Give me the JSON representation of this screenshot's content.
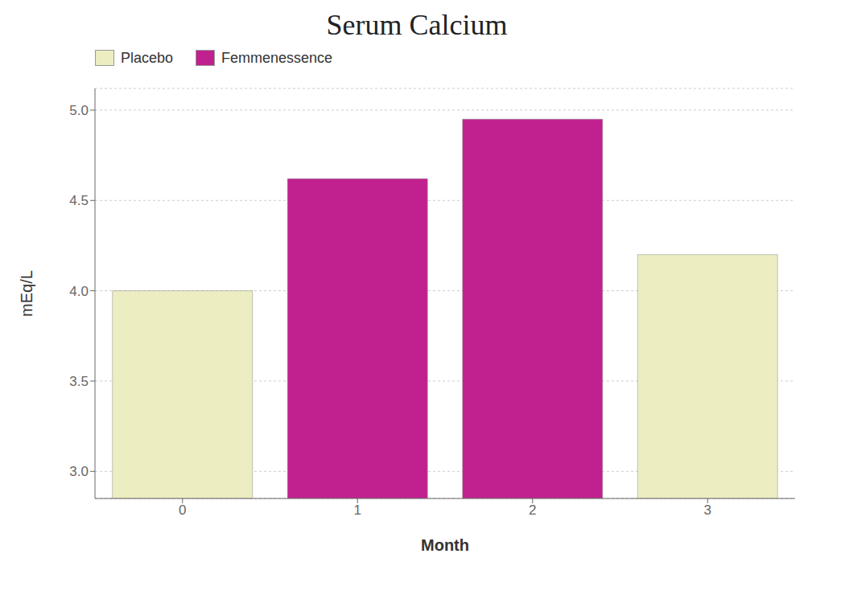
{
  "chart_data": {
    "type": "bar",
    "title": "Serum Calcium",
    "xlabel": "Month",
    "ylabel": "mEq/L",
    "categories": [
      "0",
      "1",
      "2",
      "3"
    ],
    "series": [
      {
        "name": "Placebo",
        "color": "#ECEDC0",
        "values": [
          4.0,
          null,
          null,
          4.2
        ]
      },
      {
        "name": "Femmenessence",
        "color": "#C0218E",
        "values": [
          null,
          4.62,
          4.95,
          null
        ]
      }
    ],
    "ylim": [
      2.85,
      5.12
    ],
    "yticks": [
      {
        "value": 3.0,
        "label": "3.0"
      },
      {
        "value": 3.5,
        "label": "3.5"
      },
      {
        "value": 4.0,
        "label": "4.0"
      },
      {
        "value": 4.5,
        "label": "4.5"
      },
      {
        "value": 5.0,
        "label": "5.0"
      }
    ],
    "grid": true,
    "legend": "upper left"
  }
}
